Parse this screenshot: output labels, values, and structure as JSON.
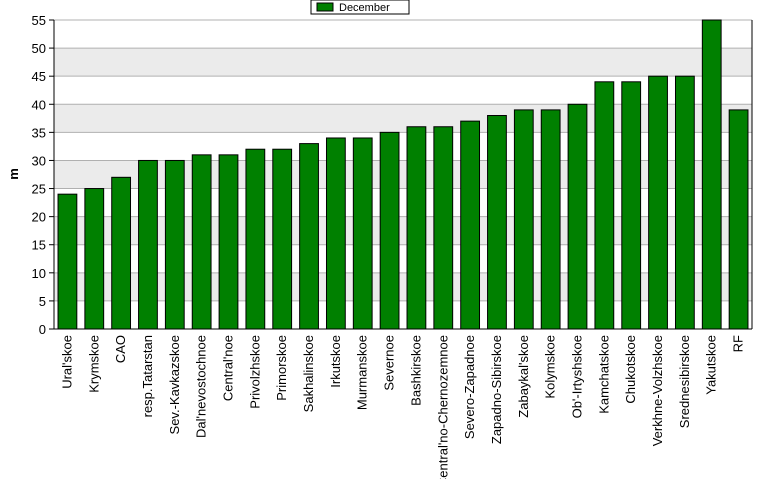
{
  "chart_data": {
    "type": "bar",
    "ylabel": "m",
    "ylim": [
      0,
      55
    ],
    "ytick_step": 5,
    "yticks": [
      "0",
      "5",
      "10",
      "15",
      "20",
      "25",
      "30",
      "35",
      "40",
      "45",
      "50",
      "55"
    ],
    "grid": true,
    "legend_position": "top-center",
    "categories": [
      "Ural'skoe",
      "Krymskoe",
      "CAO",
      "resp.Tatarstan",
      "Sev.-Kavkazskoe",
      "Dal'nevostochnoe",
      "Central'noe",
      "Privolzhskoe",
      "Primorskoe",
      "Sakhalinskoe",
      "Irkutskoe",
      "Murmanskoe",
      "Severnoe",
      "Bashkirskoe",
      "Central'no-Chernozemnoe",
      "Severo-Zapadnoe",
      "Zapadno-Sibirskoe",
      "Zabaykal'skoe",
      "Kolymskoe",
      "Ob'-Irtyshskoe",
      "Kamchatskoe",
      "Chukotskoe",
      "Verkhne-Volzhskoe",
      "Srednesibirskoe",
      "Yakutskoe",
      "RF"
    ],
    "series": [
      {
        "name": "December",
        "values": [
          24,
          25,
          27,
          30,
          30,
          31,
          31,
          32,
          32,
          33,
          34,
          34,
          35,
          36,
          36,
          37,
          38,
          39,
          39,
          40,
          44,
          44,
          45,
          45,
          55,
          39
        ]
      }
    ]
  },
  "colors": {
    "bar_fill": "#008000",
    "bar_stroke": "#000000",
    "plot_band_light": "#ffffff",
    "plot_band_dark": "#ebebeb",
    "grid": "#b0b0b0",
    "text": "#000000"
  }
}
